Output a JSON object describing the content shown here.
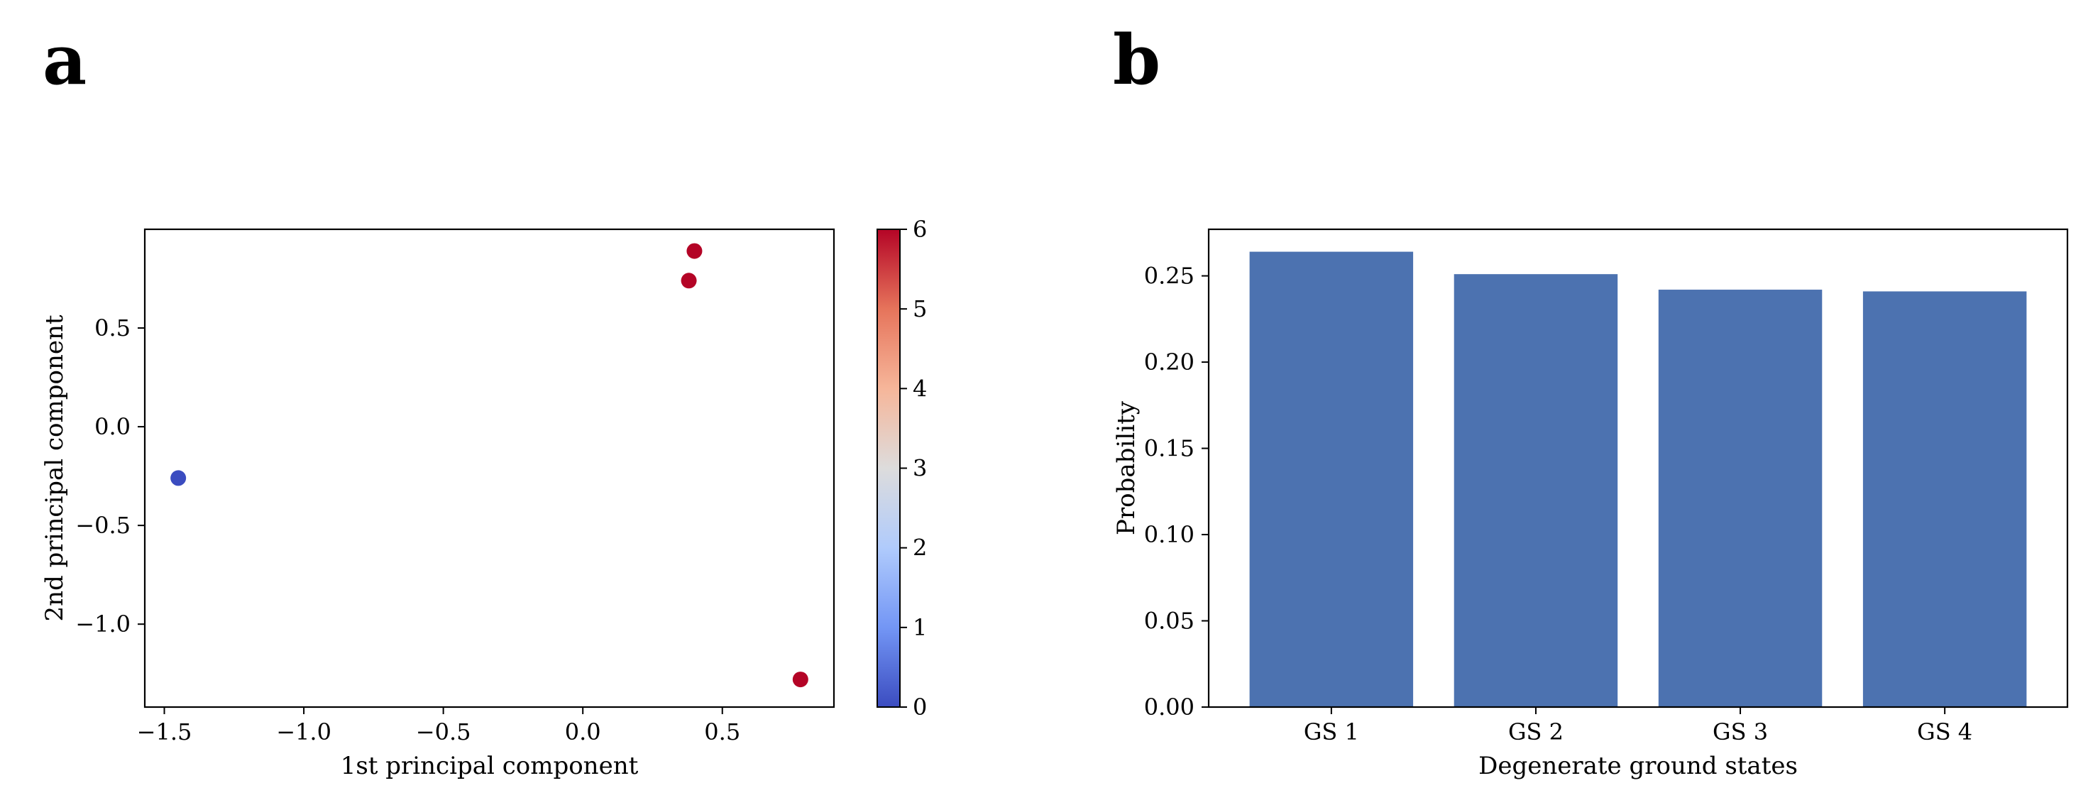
{
  "panels": {
    "a_label": "a",
    "b_label": "b"
  },
  "chart_data": [
    {
      "type": "scatter",
      "panel": "a",
      "title": "",
      "xlabel": "1st principal component",
      "ylabel": "2nd principal component",
      "xlim": [
        -1.57,
        0.9
      ],
      "ylim": [
        -1.42,
        1.0
      ],
      "xticks": [
        -1.5,
        -1.0,
        -0.5,
        0.0,
        0.5
      ],
      "xtick_labels": [
        "−1.5",
        "−1.0",
        "−0.5",
        "0.0",
        "0.5"
      ],
      "yticks": [
        -1.0,
        -0.5,
        0.0,
        0.5
      ],
      "ytick_labels": [
        "−1.0",
        "−0.5",
        "0.0",
        "0.5"
      ],
      "points": [
        {
          "x": -1.45,
          "y": -0.26,
          "c": 0
        },
        {
          "x": 0.4,
          "y": 0.89,
          "c": 6
        },
        {
          "x": 0.38,
          "y": 0.74,
          "c": 6
        },
        {
          "x": 0.78,
          "y": -1.28,
          "c": 6
        }
      ],
      "colorbar": {
        "colormap": "coolwarm",
        "min": 0,
        "max": 6,
        "ticks": [
          0,
          1,
          2,
          3,
          4,
          5,
          6
        ],
        "tick_labels": [
          "0",
          "1",
          "2",
          "3",
          "4",
          "5",
          "6"
        ],
        "colors": [
          "#3b4cc0",
          "#7396f5",
          "#b0cbfc",
          "#dddcdc",
          "#f6b69a",
          "#e6745b",
          "#b40426"
        ]
      },
      "grid": false
    },
    {
      "type": "bar",
      "panel": "b",
      "title": "",
      "xlabel": "Degenerate ground states",
      "ylabel": "Probability",
      "categories": [
        "GS 1",
        "GS 2",
        "GS 3",
        "GS 4"
      ],
      "values": [
        0.264,
        0.251,
        0.242,
        0.241
      ],
      "ylim": [
        0,
        0.277
      ],
      "yticks": [
        0.0,
        0.05,
        0.1,
        0.15,
        0.2,
        0.25
      ],
      "ytick_labels": [
        "0.00",
        "0.05",
        "0.10",
        "0.15",
        "0.20",
        "0.25"
      ],
      "bar_color": "#4c72b0",
      "grid": false
    }
  ]
}
